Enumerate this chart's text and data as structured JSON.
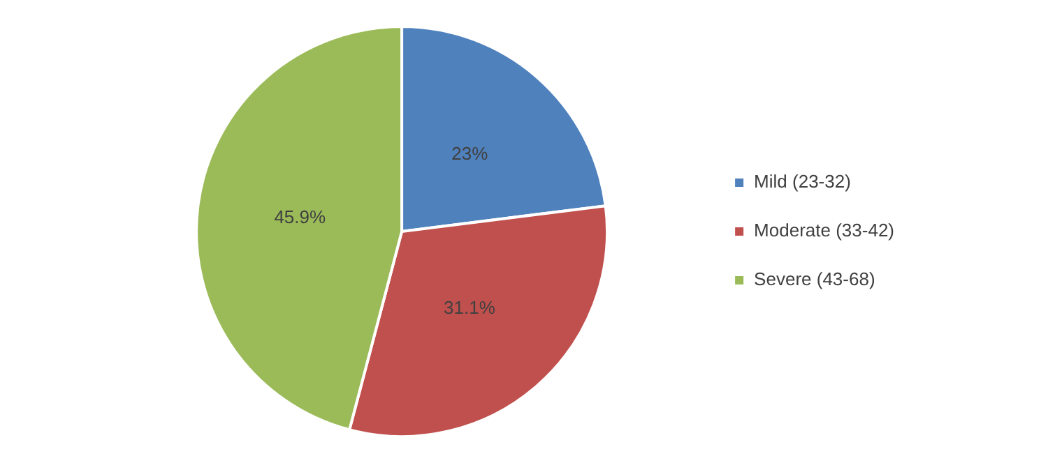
{
  "chart_data": {
    "type": "pie",
    "categories": [
      "Mild (23-32)",
      "Moderate (33-42)",
      "Severe (43-68)"
    ],
    "values": [
      23,
      31.1,
      45.9
    ],
    "colors": [
      "#4f81bd",
      "#c0504d",
      "#9bbb59"
    ],
    "value_labels": [
      "23%",
      "31.1%",
      "45.9%"
    ],
    "legend": "right"
  }
}
